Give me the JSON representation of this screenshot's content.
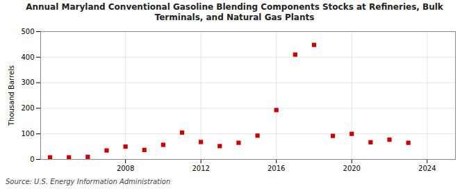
{
  "chart_data": {
    "type": "scatter",
    "title": "Annual Maryland Conventional Gasoline Blending Components Stocks at Refineries, Bulk\nTerminals, and Natural Gas Plants",
    "ylabel": "Thousand Barrels",
    "source": "Source: U.S. Energy Information Administration",
    "x": [
      2004,
      2005,
      2006,
      2007,
      2008,
      2009,
      2010,
      2011,
      2012,
      2013,
      2014,
      2015,
      2016,
      2017,
      2018,
      2019,
      2020,
      2021,
      2022,
      2023,
      2024
    ],
    "values": [
      8,
      8,
      10,
      35,
      50,
      37,
      57,
      105,
      68,
      52,
      65,
      93,
      193,
      410,
      448,
      92,
      100,
      67,
      77,
      65,
      null
    ],
    "color": "#cc0000",
    "marker": "square",
    "xlim": [
      2003.5,
      2025.5
    ],
    "xticks": [
      2008,
      2012,
      2016,
      2020,
      2024
    ],
    "ylim": [
      0,
      500
    ],
    "yticks": [
      0,
      100,
      200,
      300,
      400,
      500
    ],
    "grid": true
  }
}
